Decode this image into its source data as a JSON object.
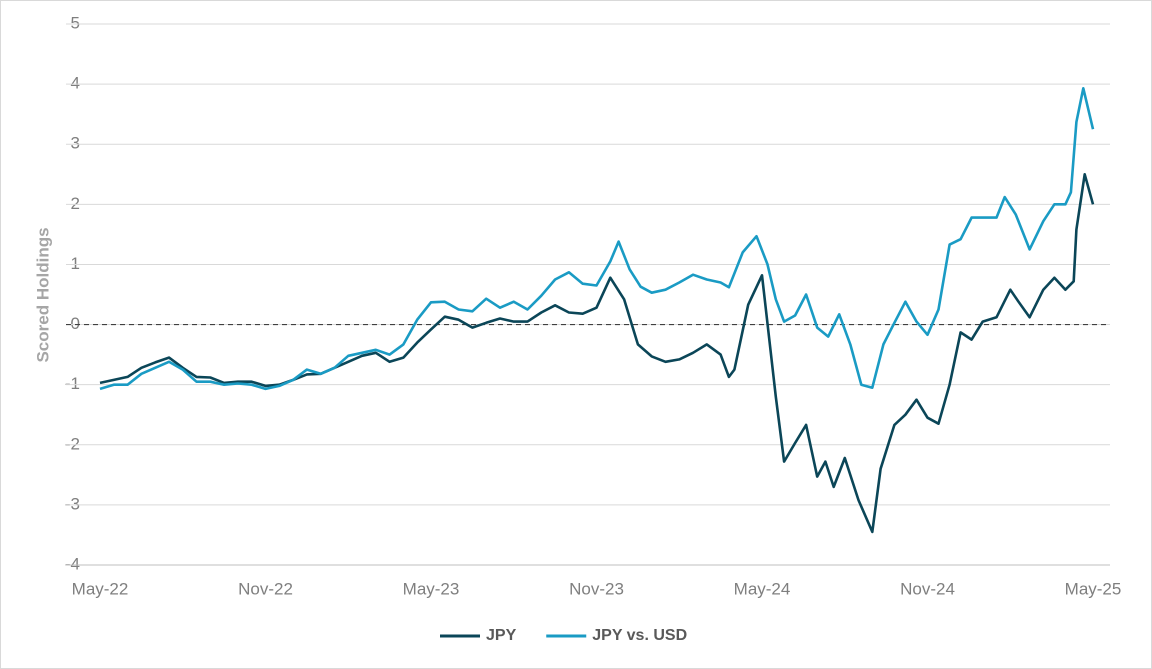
{
  "chart_data": {
    "type": "line",
    "y_label": "Scored Holdings",
    "xlim": [
      0,
      36
    ],
    "xticks": [
      {
        "value": 0,
        "label": "May-22"
      },
      {
        "value": 6,
        "label": "Nov-22"
      },
      {
        "value": 12,
        "label": "May-23"
      },
      {
        "value": 18,
        "label": "Nov-23"
      },
      {
        "value": 24,
        "label": "May-24"
      },
      {
        "value": 30,
        "label": "Nov-24"
      },
      {
        "value": 36,
        "label": "May-25"
      }
    ],
    "ylim": [
      -4,
      5
    ],
    "yticks": [
      -4,
      -3,
      -2,
      -1,
      0,
      1,
      2,
      3,
      4,
      5
    ],
    "grid": true,
    "reference_line": 0,
    "legend": "bottom",
    "series": [
      {
        "name": "JPY",
        "color": "#0b4658",
        "x": [
          0,
          0.5,
          1,
          1.5,
          2,
          2.5,
          3,
          3.5,
          4,
          4.5,
          5,
          5.5,
          6,
          6.5,
          7,
          7.5,
          8,
          8.5,
          9,
          9.5,
          10,
          10.5,
          11,
          11.5,
          12,
          12.5,
          13,
          13.5,
          14,
          14.5,
          15,
          15.5,
          16,
          16.5,
          17,
          17.5,
          18,
          18.5,
          19,
          19.5,
          20,
          20.5,
          21,
          21.5,
          22,
          22.5,
          22.8,
          23,
          23.5,
          24,
          24.5,
          24.8,
          25.2,
          25.6,
          26,
          26.3,
          26.6,
          27,
          27.5,
          28,
          28.3,
          28.8,
          29.2,
          29.6,
          30,
          30.4,
          30.8,
          31.2,
          31.6,
          32,
          32.5,
          33,
          33.3,
          33.7,
          34.2,
          34.6,
          35,
          35.3,
          35.4,
          35.7,
          36
        ],
        "values": [
          -0.97,
          -0.92,
          -0.87,
          -0.72,
          -0.63,
          -0.55,
          -0.72,
          -0.87,
          -0.88,
          -0.97,
          -0.95,
          -0.95,
          -1.02,
          -1.0,
          -0.92,
          -0.83,
          -0.82,
          -0.72,
          -0.62,
          -0.52,
          -0.47,
          -0.62,
          -0.55,
          -0.3,
          -0.08,
          0.13,
          0.08,
          -0.05,
          0.03,
          0.1,
          0.05,
          0.05,
          0.2,
          0.32,
          0.2,
          0.18,
          0.28,
          0.78,
          0.42,
          -0.33,
          -0.53,
          -0.62,
          -0.58,
          -0.47,
          -0.33,
          -0.5,
          -0.87,
          -0.75,
          0.33,
          0.82,
          -1.2,
          -2.28,
          -1.97,
          -1.67,
          -2.53,
          -2.28,
          -2.7,
          -2.22,
          -2.92,
          -3.45,
          -2.4,
          -1.67,
          -1.5,
          -1.25,
          -1.55,
          -1.65,
          -1.0,
          -0.13,
          -0.25,
          0.05,
          0.12,
          0.58,
          0.38,
          0.12,
          0.58,
          0.78,
          0.58,
          0.72,
          1.58,
          2.5,
          2.0
        ]
      },
      {
        "name": "JPY vs. USD",
        "color": "#1a9bc4",
        "x": [
          0,
          0.5,
          1,
          1.5,
          2,
          2.5,
          3,
          3.5,
          4,
          4.5,
          5,
          5.5,
          6,
          6.5,
          7,
          7.5,
          8,
          8.5,
          9,
          9.5,
          10,
          10.5,
          11,
          11.5,
          12,
          12.5,
          13,
          13.5,
          14,
          14.5,
          15,
          15.5,
          16,
          16.5,
          17,
          17.5,
          18,
          18.5,
          18.8,
          19.2,
          19.6,
          20,
          20.5,
          21,
          21.5,
          22,
          22.5,
          22.8,
          23.3,
          23.8,
          24.2,
          24.5,
          24.8,
          25.2,
          25.6,
          26,
          26.4,
          26.8,
          27.2,
          27.6,
          28,
          28.4,
          28.8,
          29.2,
          29.6,
          30,
          30.4,
          30.8,
          31.2,
          31.6,
          32,
          32.5,
          32.8,
          33.2,
          33.7,
          34.2,
          34.6,
          35,
          35.2,
          35.4,
          35.65,
          36
        ],
        "values": [
          -1.07,
          -1.0,
          -1.0,
          -0.82,
          -0.72,
          -0.62,
          -0.75,
          -0.95,
          -0.95,
          -1.0,
          -0.98,
          -1.0,
          -1.07,
          -1.02,
          -0.92,
          -0.75,
          -0.82,
          -0.72,
          -0.52,
          -0.47,
          -0.42,
          -0.5,
          -0.33,
          0.08,
          0.37,
          0.38,
          0.25,
          0.22,
          0.43,
          0.28,
          0.38,
          0.25,
          0.48,
          0.75,
          0.87,
          0.68,
          0.65,
          1.05,
          1.38,
          0.92,
          0.63,
          0.53,
          0.58,
          0.7,
          0.83,
          0.75,
          0.7,
          0.62,
          1.2,
          1.47,
          1.0,
          0.42,
          0.05,
          0.15,
          0.5,
          -0.05,
          -0.2,
          0.17,
          -0.33,
          -1.0,
          -1.05,
          -0.33,
          0.03,
          0.38,
          0.05,
          -0.17,
          0.25,
          1.33,
          1.42,
          1.78,
          1.78,
          1.78,
          2.12,
          1.83,
          1.25,
          1.72,
          2.0,
          2.0,
          2.2,
          3.37,
          3.93,
          3.25
        ]
      }
    ]
  }
}
